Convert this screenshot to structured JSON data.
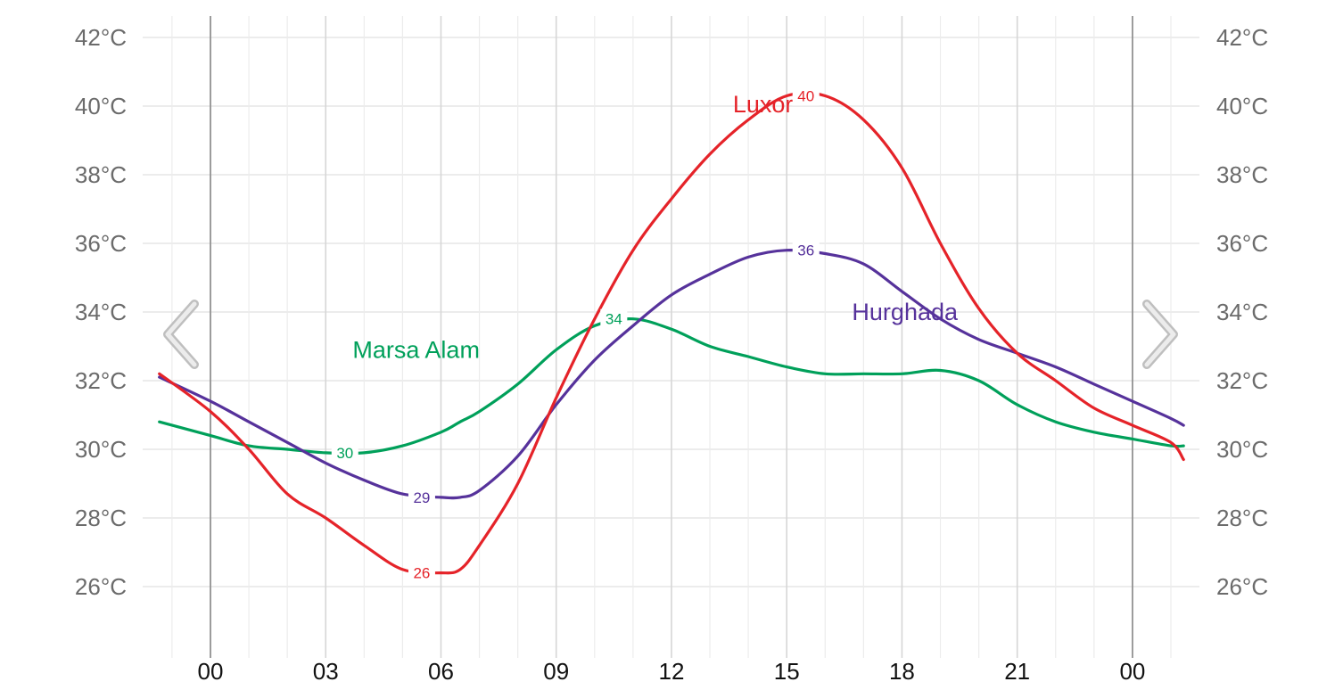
{
  "chart_data": {
    "type": "line",
    "title": "",
    "xlabel": "",
    "ylabel": "",
    "x_hours": [
      -1.33,
      0,
      1,
      2,
      3,
      4,
      5,
      6,
      6.5,
      7,
      8,
      9,
      10,
      11,
      12,
      13,
      14,
      15,
      16,
      17,
      18,
      19,
      20,
      21,
      22,
      23,
      24,
      25,
      25.33
    ],
    "x_tick_labels": [
      {
        "hour": 0,
        "label": "00"
      },
      {
        "hour": 3,
        "label": "03"
      },
      {
        "hour": 6,
        "label": "06"
      },
      {
        "hour": 9,
        "label": "09"
      },
      {
        "hour": 12,
        "label": "12"
      },
      {
        "hour": 15,
        "label": "15"
      },
      {
        "hour": 18,
        "label": "18"
      },
      {
        "hour": 21,
        "label": "21"
      },
      {
        "hour": 24,
        "label": "00"
      }
    ],
    "day_separators": [
      0,
      24
    ],
    "xlim": [
      -1.4,
      25.4
    ],
    "ylim": [
      24.5,
      42.5
    ],
    "y_ticks": [
      26,
      28,
      30,
      32,
      34,
      36,
      38,
      40,
      42
    ],
    "y_tick_labels": [
      "26°C",
      "28°C",
      "30°C",
      "32°C",
      "34°C",
      "36°C",
      "38°C",
      "40°C",
      "42°C"
    ],
    "grid": true,
    "series": [
      {
        "name": "Marsa Alam",
        "color": "#00a05a",
        "values": [
          30.8,
          30.4,
          30.1,
          30.0,
          29.9,
          29.9,
          30.1,
          30.5,
          30.8,
          31.1,
          31.9,
          32.9,
          33.6,
          33.8,
          33.5,
          33.0,
          32.7,
          32.4,
          32.2,
          32.2,
          32.2,
          32.3,
          32.0,
          31.3,
          30.8,
          30.5,
          30.3,
          30.1,
          30.1
        ],
        "name_label_anchor_hour": 3.7,
        "name_label_anchor_value": 32.9,
        "point_labels": [
          {
            "hour": 3.5,
            "value": 29.9,
            "text": "30"
          },
          {
            "hour": 10.5,
            "value": 33.8,
            "text": "34"
          }
        ]
      },
      {
        "name": "Hurghada",
        "color": "#56329b",
        "values": [
          32.1,
          31.4,
          30.8,
          30.2,
          29.6,
          29.1,
          28.7,
          28.6,
          28.6,
          28.8,
          29.8,
          31.3,
          32.6,
          33.6,
          34.5,
          35.1,
          35.6,
          35.8,
          35.7,
          35.4,
          34.6,
          33.8,
          33.2,
          32.8,
          32.4,
          31.9,
          31.4,
          30.9,
          30.7
        ],
        "name_label_anchor_hour": 16.7,
        "name_label_anchor_value": 34.0,
        "point_labels": [
          {
            "hour": 5.5,
            "value": 28.6,
            "text": "29"
          },
          {
            "hour": 15.5,
            "value": 35.8,
            "text": "36"
          }
        ]
      },
      {
        "name": "Luxor",
        "color": "#e52329",
        "values": [
          32.2,
          31.1,
          30.0,
          28.7,
          28.0,
          27.2,
          26.5,
          26.4,
          26.5,
          27.2,
          29.0,
          31.5,
          33.8,
          35.8,
          37.3,
          38.6,
          39.6,
          40.3,
          40.3,
          39.6,
          38.2,
          36.0,
          34.1,
          32.8,
          32.0,
          31.2,
          30.7,
          30.2,
          29.7
        ],
        "name_label_anchor_hour": 13.6,
        "name_label_anchor_value": 40.05,
        "point_labels": [
          {
            "hour": 5.5,
            "value": 26.4,
            "text": "26"
          },
          {
            "hour": 15.5,
            "value": 40.3,
            "text": "40"
          }
        ]
      }
    ]
  },
  "nav": {
    "prev_icon": "chevron-left-icon",
    "next_icon": "chevron-right-icon"
  }
}
